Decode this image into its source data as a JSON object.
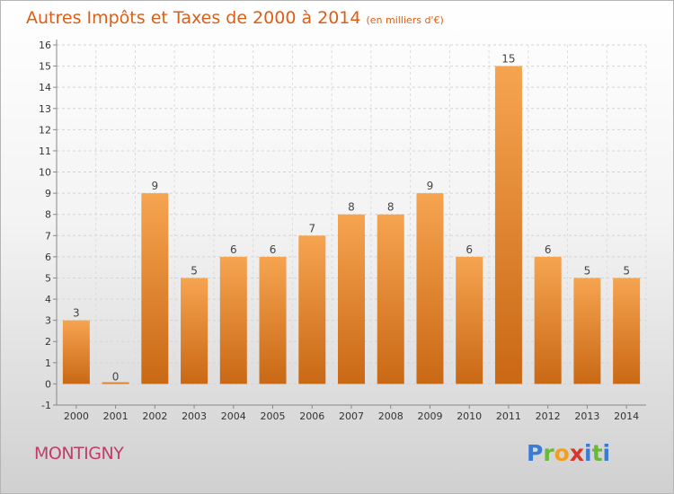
{
  "title": "Autres Impôts et Taxes de 2000 à 2014",
  "subtitle": "(en milliers d'€)",
  "location": "MONTIGNY",
  "logo": {
    "text": "Proxiti",
    "letters": [
      "P",
      "r",
      "o",
      "x",
      "i",
      "t",
      "i"
    ]
  },
  "colors": {
    "bar_top": "#f6a450",
    "bar_bottom": "#c96815",
    "title": "#e05d14",
    "location": "#c03c6a"
  },
  "chart_data": {
    "type": "bar",
    "categories": [
      "2000",
      "2001",
      "2002",
      "2003",
      "2004",
      "2005",
      "2006",
      "2007",
      "2008",
      "2009",
      "2010",
      "2011",
      "2012",
      "2013",
      "2014"
    ],
    "values": [
      3,
      0,
      9,
      5,
      6,
      6,
      7,
      8,
      8,
      9,
      6,
      15,
      6,
      5,
      5
    ],
    "yticks": [
      -1,
      0,
      1,
      2,
      3,
      4,
      5,
      6,
      7,
      8,
      9,
      10,
      11,
      12,
      13,
      14,
      15,
      16
    ],
    "ylim": [
      -1,
      16
    ],
    "grid": true,
    "data_labels": true
  }
}
